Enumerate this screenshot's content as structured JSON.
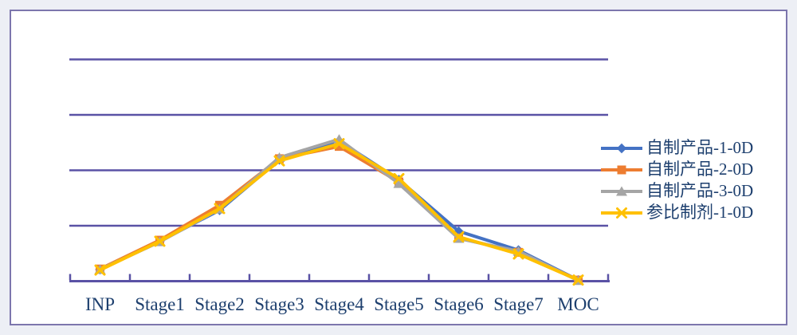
{
  "page": {
    "background_color": "#edeff5",
    "card_border_color": "#7c76ad",
    "card_background": "#ffffff"
  },
  "chart_data": {
    "type": "line",
    "title": "",
    "categories": [
      "INP",
      "Stage1",
      "Stage2",
      "Stage3",
      "Stage4",
      "Stage5",
      "Stage6",
      "Stage7",
      "MOC"
    ],
    "series": [
      {
        "name": "自制产品-1-0D",
        "color": "#4472C4",
        "marker": "diamond",
        "values": [
          0.21,
          0.72,
          1.28,
          2.19,
          2.53,
          1.83,
          0.9,
          0.56,
          0.02
        ]
      },
      {
        "name": "自制产品-2-0D",
        "color": "#ED7D31",
        "marker": "square",
        "values": [
          0.22,
          0.74,
          1.37,
          2.21,
          2.43,
          1.79,
          0.78,
          0.52,
          0.02
        ]
      },
      {
        "name": "自制产品-3-0D",
        "color": "#A5A5A5",
        "marker": "triangle",
        "values": [
          0.21,
          0.71,
          1.3,
          2.23,
          2.56,
          1.76,
          0.77,
          0.54,
          0.01
        ]
      },
      {
        "name": "参比制剂-1-0D",
        "color": "#FFC000",
        "marker": "x",
        "values": [
          0.2,
          0.72,
          1.31,
          2.17,
          2.48,
          1.85,
          0.8,
          0.49,
          0.02
        ]
      }
    ],
    "xlabel": "",
    "ylabel": "",
    "ylim": [
      0,
      4
    ],
    "y_axis_labels_visible": false,
    "gridline_values": [
      1,
      2,
      3,
      4
    ],
    "gridline_color": "#5a52a5",
    "axis_color": "#5a52a5",
    "tick_style": "inward-between-categories",
    "category_label_color": "#1d3f6e",
    "legend_position": "right",
    "legend_text_color": "#1d3f6e"
  }
}
